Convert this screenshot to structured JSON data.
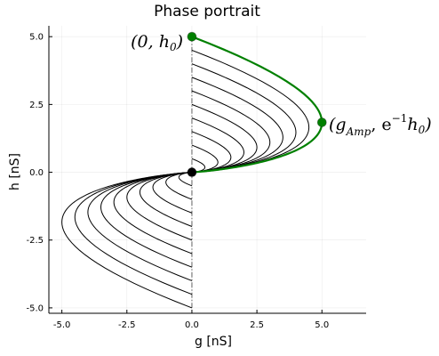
{
  "chart_data": {
    "type": "line",
    "title": "Phase portrait",
    "xlabel": "g [nS]",
    "ylabel": "h [nS]",
    "xlim": [
      -5.5,
      6.7
    ],
    "ylim": [
      -5.2,
      5.4
    ],
    "x_ticks": [
      -5.0,
      -2.5,
      0.0,
      2.5,
      5.0
    ],
    "x_tick_labels": [
      "-5.0",
      "-2.5",
      "0.0",
      "2.5",
      "5.0"
    ],
    "y_ticks": [
      -5.0,
      -2.5,
      0.0,
      2.5,
      5.0
    ],
    "y_tick_labels": [
      "-5.0",
      "-2.5",
      "0.0",
      "2.5",
      "5.0"
    ],
    "grid": true,
    "trajectory_starts_h0": [
      -5.0,
      -4.5,
      -4.0,
      -3.5,
      -3.0,
      -2.5,
      -2.0,
      -1.5,
      -1.0,
      -0.5,
      0.5,
      1.0,
      1.5,
      2.0,
      2.5,
      3.0,
      3.5,
      4.0,
      4.5
    ],
    "highlighted_h0": 5.0,
    "trajectory_color": "#000000",
    "highlight_color": "#008000",
    "nullcline_color": "#7a7a7a",
    "points": [
      {
        "x": 0.0,
        "y": 5.0,
        "color": "#008000"
      },
      {
        "x": 5.0,
        "y": 1.84,
        "color": "#008000"
      },
      {
        "x": 0.0,
        "y": 0.0,
        "color": "#000000"
      }
    ],
    "annotations": {
      "start_label_main": "(0, h",
      "start_label_sub": "0",
      "start_label_end": ")",
      "peak_label_main": "(g",
      "peak_label_sub": "Amp",
      "peak_label_mid": ", e",
      "peak_label_sup": "−1",
      "peak_label_h": "h",
      "peak_label_sub2": "0",
      "peak_label_end": ")"
    }
  }
}
